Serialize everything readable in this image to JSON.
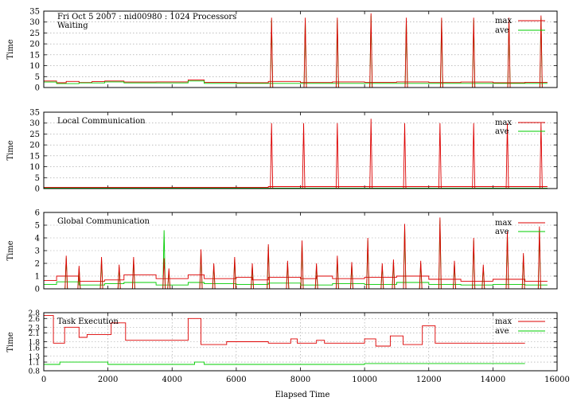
{
  "header_title": "Fri Oct 5 2007 : nid00980 : 1024 Processors",
  "xlabel": "Elapsed Time",
  "x_ticks": [
    0,
    2000,
    4000,
    6000,
    8000,
    10000,
    12000,
    14000,
    16000
  ],
  "xlim": [
    0,
    16000
  ],
  "legend": {
    "max": "max",
    "ave": "ave"
  },
  "colors": {
    "max": "#dd0000",
    "ave": "#00cc00",
    "grid": "#9a9a9a"
  },
  "chart_data": [
    {
      "type": "line",
      "title": "Waiting",
      "ylabel": "Time",
      "ylim": [
        0,
        35
      ],
      "yticks": [
        0,
        5,
        10,
        15,
        20,
        25,
        30,
        35
      ],
      "grid": true,
      "legend_position": "top-right",
      "spikes": [
        {
          "x": 7100,
          "max": 32,
          "ave": 31
        },
        {
          "x": 8150,
          "max": 32,
          "ave": 31
        },
        {
          "x": 9150,
          "max": 32,
          "ave": 31
        },
        {
          "x": 10200,
          "max": 34,
          "ave": 33
        },
        {
          "x": 11300,
          "max": 32,
          "ave": 31
        },
        {
          "x": 12400,
          "max": 32,
          "ave": 31
        },
        {
          "x": 13400,
          "max": 32,
          "ave": 31
        },
        {
          "x": 14500,
          "max": 32,
          "ave": 31
        },
        {
          "x": 15500,
          "max": 33,
          "ave": 32
        }
      ],
      "series": [
        {
          "name": "max",
          "x": [
            0,
            400,
            400,
            700,
            700,
            1100,
            1100,
            1500,
            1500,
            1900,
            1900,
            2500,
            2500,
            3500,
            3500,
            4500,
            4500,
            5000,
            5000,
            6000,
            6000,
            7000,
            7000,
            8000,
            8000,
            9000,
            9000,
            10000,
            10000,
            11000,
            11000,
            12000,
            12000,
            13000,
            13000,
            14000,
            14000,
            15000,
            15000,
            15700
          ],
          "y": [
            3,
            3,
            2.2,
            2.2,
            2.8,
            2.8,
            2.3,
            2.3,
            2.7,
            2.7,
            3,
            3,
            2.5,
            2.5,
            2.6,
            2.6,
            3.5,
            3.5,
            2.4,
            2.4,
            2.2,
            2.2,
            2.8,
            2.8,
            2.3,
            2.3,
            2.6,
            2.6,
            2.4,
            2.4,
            2.6,
            2.6,
            2.3,
            2.3,
            2.5,
            2.5,
            2.2,
            2.2,
            2.4,
            2.4
          ]
        },
        {
          "name": "ave",
          "x": [
            0,
            400,
            400,
            1100,
            1100,
            1900,
            1900,
            2500,
            2500,
            4500,
            4500,
            5000,
            5000,
            15700
          ],
          "y": [
            2.5,
            2.5,
            1.8,
            1.8,
            2.1,
            2.1,
            2.6,
            2.6,
            2.1,
            2.1,
            3,
            3,
            1.9,
            1.9
          ]
        }
      ]
    },
    {
      "type": "line",
      "title": "Local Communication",
      "ylabel": "Time",
      "ylim": [
        0,
        35
      ],
      "yticks": [
        0,
        5,
        10,
        15,
        20,
        25,
        30,
        35
      ],
      "grid": true,
      "legend_position": "top-right",
      "spikes": [
        {
          "x": 7100,
          "max": 30,
          "ave": 0
        },
        {
          "x": 8100,
          "max": 30,
          "ave": 0
        },
        {
          "x": 9150,
          "max": 30,
          "ave": 0
        },
        {
          "x": 10200,
          "max": 32,
          "ave": 0
        },
        {
          "x": 11250,
          "max": 30,
          "ave": 0
        },
        {
          "x": 12350,
          "max": 30,
          "ave": 0
        },
        {
          "x": 13400,
          "max": 30,
          "ave": 0
        },
        {
          "x": 14450,
          "max": 30,
          "ave": 0
        },
        {
          "x": 15500,
          "max": 30,
          "ave": 0
        }
      ],
      "series": [
        {
          "name": "max",
          "x": [
            0,
            7000,
            7000,
            15700
          ],
          "y": [
            0.6,
            0.6,
            0.9,
            0.9
          ]
        },
        {
          "name": "ave",
          "x": [
            0,
            15700
          ],
          "y": [
            0.2,
            0.2
          ]
        }
      ]
    },
    {
      "type": "line",
      "title": "Global Communication",
      "ylabel": "Time",
      "ylim": [
        0,
        6
      ],
      "yticks": [
        0,
        1,
        2,
        3,
        4,
        5,
        6
      ],
      "grid": true,
      "legend_position": "top-right",
      "spikes": [
        {
          "x": 700,
          "max": 2.6,
          "ave": 2.4
        },
        {
          "x": 1100,
          "max": 1.8,
          "ave": 1.6
        },
        {
          "x": 1800,
          "max": 2.5,
          "ave": 2.3
        },
        {
          "x": 2350,
          "max": 1.9,
          "ave": 1.7
        },
        {
          "x": 2800,
          "max": 2.5,
          "ave": 2.3
        },
        {
          "x": 3750,
          "max": 2.4,
          "ave": 4.6
        },
        {
          "x": 3900,
          "max": 1.6,
          "ave": 1.4
        },
        {
          "x": 4900,
          "max": 3.1,
          "ave": 2.9
        },
        {
          "x": 5300,
          "max": 2.0,
          "ave": 1.8
        },
        {
          "x": 5950,
          "max": 2.5,
          "ave": 2.3
        },
        {
          "x": 6500,
          "max": 2.0,
          "ave": 1.8
        },
        {
          "x": 7000,
          "max": 3.5,
          "ave": 3.3
        },
        {
          "x": 7600,
          "max": 2.2,
          "ave": 2.0
        },
        {
          "x": 8050,
          "max": 3.8,
          "ave": 3.6
        },
        {
          "x": 8500,
          "max": 2.0,
          "ave": 1.8
        },
        {
          "x": 9150,
          "max": 2.6,
          "ave": 2.4
        },
        {
          "x": 9600,
          "max": 2.1,
          "ave": 1.9
        },
        {
          "x": 10100,
          "max": 4.0,
          "ave": 3.8
        },
        {
          "x": 10550,
          "max": 2.0,
          "ave": 1.8
        },
        {
          "x": 10900,
          "max": 2.3,
          "ave": 2.1
        },
        {
          "x": 11250,
          "max": 5.1,
          "ave": 4.9
        },
        {
          "x": 11750,
          "max": 2.2,
          "ave": 2.0
        },
        {
          "x": 12350,
          "max": 5.6,
          "ave": 5.4
        },
        {
          "x": 12800,
          "max": 2.2,
          "ave": 2.0
        },
        {
          "x": 13400,
          "max": 4.0,
          "ave": 3.8
        },
        {
          "x": 13700,
          "max": 1.9,
          "ave": 1.7
        },
        {
          "x": 14450,
          "max": 4.5,
          "ave": 4.3
        },
        {
          "x": 14950,
          "max": 2.8,
          "ave": 2.6
        },
        {
          "x": 15450,
          "max": 4.9,
          "ave": 4.7
        }
      ],
      "series": [
        {
          "name": "max",
          "x": [
            0,
            400,
            400,
            1100,
            1100,
            1900,
            1900,
            2500,
            2500,
            3500,
            3500,
            4500,
            4500,
            5000,
            5000,
            6000,
            6000,
            6500,
            6500,
            7000,
            7000,
            8000,
            8000,
            8500,
            8500,
            9000,
            9000,
            10000,
            10000,
            11000,
            11000,
            12000,
            12000,
            13000,
            13000,
            14000,
            14000,
            15000,
            15000,
            15700
          ],
          "y": [
            0.65,
            0.65,
            1.0,
            1.0,
            0.6,
            0.6,
            0.7,
            0.7,
            1.1,
            1.1,
            0.8,
            0.8,
            1.1,
            1.1,
            0.8,
            0.8,
            0.9,
            0.9,
            0.7,
            0.7,
            0.9,
            0.9,
            0.8,
            0.8,
            1.0,
            1.0,
            0.8,
            0.8,
            0.9,
            0.9,
            1.0,
            1.0,
            0.75,
            0.75,
            0.6,
            0.6,
            0.75,
            0.75,
            0.6,
            0.6
          ]
        },
        {
          "name": "ave",
          "x": [
            0,
            400,
            400,
            1100,
            1100,
            1900,
            1900,
            2500,
            2500,
            3500,
            3500,
            4500,
            4500,
            5000,
            5000,
            6000,
            6000,
            7000,
            7000,
            8000,
            8000,
            9000,
            9000,
            10000,
            10000,
            11000,
            11000,
            12000,
            12000,
            13000,
            13000,
            14000,
            14000,
            15000,
            15000,
            15700
          ],
          "y": [
            0.35,
            0.35,
            0.55,
            0.55,
            0.3,
            0.3,
            0.4,
            0.4,
            0.5,
            0.5,
            0.3,
            0.3,
            0.5,
            0.5,
            0.4,
            0.4,
            0.35,
            0.35,
            0.45,
            0.45,
            0.3,
            0.3,
            0.4,
            0.4,
            0.35,
            0.35,
            0.5,
            0.5,
            0.35,
            0.35,
            0.3,
            0.3,
            0.35,
            0.35,
            0.3,
            0.3
          ]
        }
      ]
    },
    {
      "type": "line",
      "title": "Task Execution",
      "ylabel": "Time",
      "ylim": [
        0.8,
        2.8
      ],
      "yticks": [
        0.8,
        1.1,
        1.3,
        1.6,
        1.8,
        2.1,
        2.3,
        2.6,
        2.8
      ],
      "grid": true,
      "legend_position": "top-right",
      "series": [
        {
          "name": "max",
          "x": [
            0,
            300,
            300,
            650,
            650,
            1100,
            1100,
            1350,
            1350,
            2100,
            2100,
            2550,
            2550,
            4500,
            4500,
            4900,
            4900,
            5700,
            5700,
            7000,
            7000,
            7700,
            7700,
            7900,
            7900,
            8500,
            8500,
            8750,
            8750,
            10000,
            10000,
            10350,
            10350,
            10800,
            10800,
            11200,
            11200,
            11800,
            11800,
            12200,
            12200,
            15000
          ],
          "y": [
            2.7,
            2.7,
            1.75,
            1.75,
            2.3,
            2.3,
            1.95,
            1.95,
            2.05,
            2.05,
            2.45,
            2.45,
            1.85,
            1.85,
            2.6,
            2.6,
            1.7,
            1.7,
            1.8,
            1.8,
            1.75,
            1.75,
            1.9,
            1.9,
            1.75,
            1.75,
            1.85,
            1.85,
            1.75,
            1.75,
            1.9,
            1.9,
            1.65,
            1.65,
            2.0,
            2.0,
            1.7,
            1.7,
            2.35,
            2.35,
            1.75,
            1.75
          ]
        },
        {
          "name": "ave",
          "x": [
            0,
            500,
            500,
            2000,
            2000,
            4700,
            4700,
            5000,
            5000,
            10000,
            10000,
            15000
          ],
          "y": [
            1.02,
            1.02,
            1.1,
            1.1,
            1.02,
            1.02,
            1.1,
            1.1,
            1.02,
            1.02,
            1.05,
            1.05
          ]
        }
      ]
    }
  ]
}
